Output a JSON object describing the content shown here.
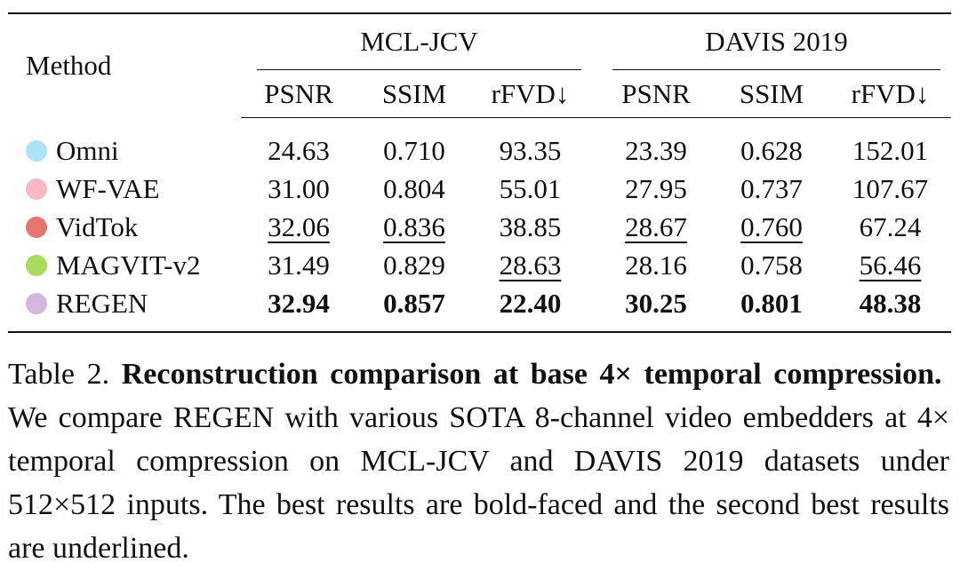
{
  "table": {
    "header": {
      "method": "Method",
      "groups": [
        "MCL-JCV",
        "DAVIS 2019"
      ],
      "columns": [
        "PSNR",
        "SSIM",
        "rFVD↓",
        "PSNR",
        "SSIM",
        "rFVD↓"
      ]
    },
    "rows": [
      {
        "method": "Omni",
        "color": "#ade3f6",
        "values": [
          "24.63",
          "0.710",
          "93.35",
          "23.39",
          "0.628",
          "152.01"
        ]
      },
      {
        "method": "WF-VAE",
        "color": "#f8b8c6",
        "values": [
          "31.00",
          "0.804",
          "55.01",
          "27.95",
          "0.737",
          "107.67"
        ]
      },
      {
        "method": "VidTok",
        "color": "#e77470",
        "values": [
          "32.06",
          "0.836",
          "38.85",
          "28.67",
          "0.760",
          "67.24"
        ]
      },
      {
        "method": "MAGVIT-v2",
        "color": "#a8dc5e",
        "values": [
          "31.49",
          "0.829",
          "28.63",
          "28.16",
          "0.758",
          "56.46"
        ]
      },
      {
        "method": "REGEN",
        "color": "#d3b7dd",
        "values": [
          "32.94",
          "0.857",
          "22.40",
          "30.25",
          "0.801",
          "48.38"
        ]
      }
    ]
  },
  "caption": {
    "label": "Table 2.",
    "title": "Reconstruction comparison at base 4× temporal compression.",
    "body": "We compare REGEN with various SOTA 8-channel video embedders at 4× temporal compression on MCL-JCV and DAVIS 2019 datasets under 512×512 inputs. The best results are bold-faced and the second best results are underlined."
  }
}
